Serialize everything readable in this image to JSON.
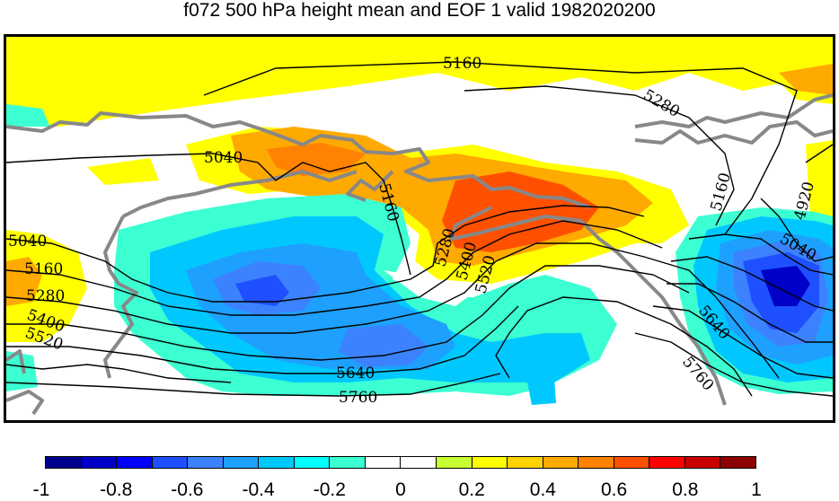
{
  "title": "f072 500 hPa height mean and EOF 1 valid 1982020200",
  "contour_labels": {
    "c5160_top": "5160",
    "c5280_ne": "5280",
    "c5040_center": "5040",
    "c5160_mid": "5160",
    "c5040_w": "5040",
    "c5160_w": "5160",
    "c5280_w": "5280",
    "c5400_w": "5400",
    "c5520_w": "5520",
    "c5280_c": "5280",
    "c5400_c": "5400",
    "c5520_c": "5520",
    "c5160_e": "5160",
    "c4920_e": "4920",
    "c5040_e": "5040",
    "c5640_e": "5640",
    "c5760_e": "5760",
    "c5640_s": "5640",
    "c5760_s": "5760"
  },
  "colorbar": {
    "colors": [
      "#00008c",
      "#0000c8",
      "#0000ff",
      "#1e50ff",
      "#3c82ff",
      "#1ea0ff",
      "#00c8ff",
      "#00ffff",
      "#3cffd2",
      "#ffffff",
      "#ffffff",
      "#c8ff32",
      "#ffff00",
      "#ffd200",
      "#ffaa00",
      "#ff8200",
      "#ff5000",
      "#ff0000",
      "#c80000",
      "#8c0000"
    ],
    "tick_labels": [
      "-1",
      "-0.8",
      "-0.6",
      "-0.4",
      "-0.2",
      "0",
      "0.2",
      "0.4",
      "0.6",
      "0.8",
      "1"
    ]
  },
  "colors": {
    "coastline": "#888888",
    "contour": "#000000"
  }
}
